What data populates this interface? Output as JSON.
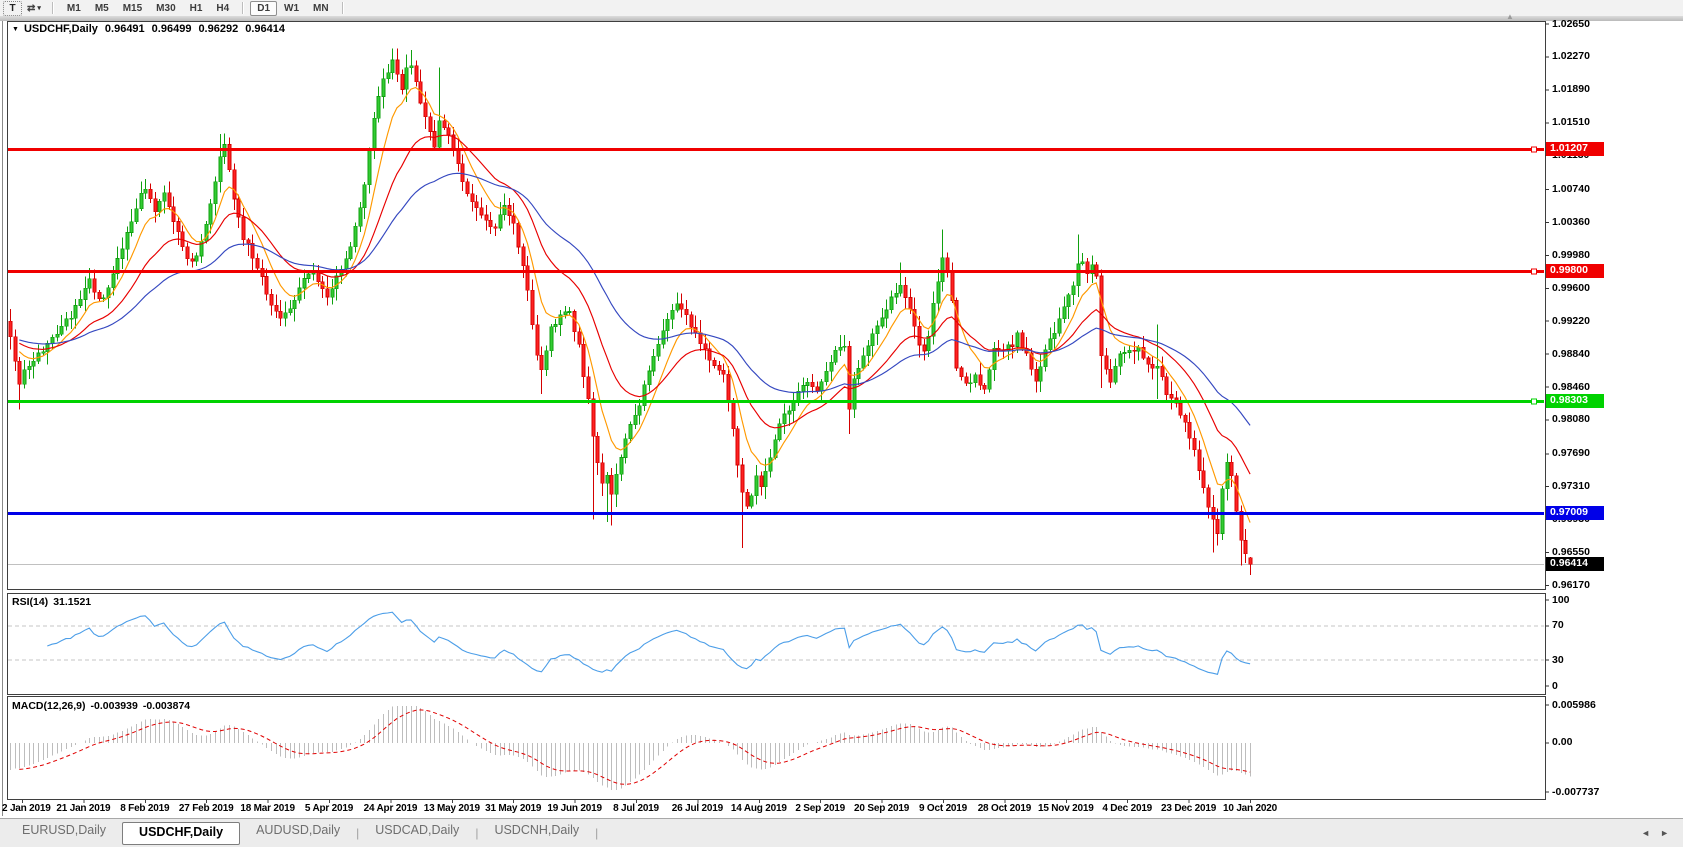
{
  "icons": {
    "symbol_dropdown": "▼",
    "caret_down": "▾",
    "arrows_tool": "⇄",
    "scroll_top": "▲",
    "tabs_scroll_left": "◄",
    "tabs_scroll_right": "►"
  },
  "toolbar": {
    "text_tool_label": "T",
    "timeframes": [
      "M1",
      "M5",
      "M15",
      "M30",
      "H1",
      "H4",
      "D1",
      "W1",
      "MN"
    ],
    "active_timeframe": "D1"
  },
  "header": {
    "symbol_label": "USDCHF,Daily",
    "open": "0.96491",
    "high": "0.96499",
    "low": "0.96292",
    "close": "0.96414"
  },
  "rsi_panel": {
    "title": "RSI(14)",
    "value": "31.1521",
    "axis": [
      "100",
      "70",
      "30",
      "0"
    ],
    "levels_dashed": [
      70,
      30
    ],
    "line_color": "#4c9ee8"
  },
  "macd_panel": {
    "title": "MACD(12,26,9)",
    "value_main": "-0.003939",
    "value_signal": "-0.003874",
    "axis": [
      "0.005986",
      "0.00",
      "-0.007737"
    ],
    "histogram_color": "#bdbdbd",
    "signal_color": "#e00000"
  },
  "tabs": {
    "separator": "|",
    "items": [
      "EURUSD,Daily",
      "USDCHF,Daily",
      "AUDUSD,Daily",
      "USDCAD,Daily",
      "USDCNH,Daily"
    ],
    "active": "USDCHF,Daily"
  },
  "chart_data": {
    "type": "candlestick",
    "symbol": "USDCHF",
    "timeframe": "Daily",
    "bar_count": 267,
    "current_ohlc": {
      "open": 0.96491,
      "high": 0.96499,
      "low": 0.96292,
      "close": 0.96414
    },
    "y_axis": {
      "min": 0.9617,
      "max": 1.0265,
      "tick_labels": [
        "1.02650",
        "1.02270",
        "1.01890",
        "1.01510",
        "1.01130",
        "1.00740",
        "1.00360",
        "0.99980",
        "0.99600",
        "0.99220",
        "0.98840",
        "0.98460",
        "0.98080",
        "0.97690",
        "0.97310",
        "0.96930",
        "0.96550",
        "0.96170"
      ]
    },
    "x_axis_dates": [
      "2 Jan 2019",
      "21 Jan 2019",
      "8 Feb 2019",
      "27 Feb 2019",
      "18 Mar 2019",
      "5 Apr 2019",
      "24 Apr 2019",
      "13 May 2019",
      "31 May 2019",
      "19 Jun 2019",
      "8 Jul 2019",
      "26 Jul 2019",
      "14 Aug 2019",
      "2 Sep 2019",
      "20 Sep 2019",
      "9 Oct 2019",
      "28 Oct 2019",
      "15 Nov 2019",
      "4 Dec 2019",
      "23 Dec 2019",
      "10 Jan 2020"
    ],
    "level_lines": [
      {
        "value": 1.01207,
        "label": "1.01207",
        "color": "#f00000",
        "width": 3,
        "handle": true
      },
      {
        "value": 0.998,
        "label": "0.99800",
        "color": "#f00000",
        "width": 3,
        "handle": true
      },
      {
        "value": 0.98303,
        "label": "0.98303",
        "color": "#00d200",
        "width": 3,
        "handle": true
      },
      {
        "value": 0.97009,
        "label": "0.97009",
        "color": "#0000e8",
        "width": 3,
        "handle": false
      }
    ],
    "bid": {
      "price": 0.96414,
      "label": "0.96414",
      "line_color": "#c0c0c0",
      "tag_bg": "#000000"
    },
    "moving_averages": [
      {
        "name": "fast",
        "period": 8,
        "color": "#ff9900"
      },
      {
        "name": "mid",
        "period": 21,
        "color": "#e80000"
      },
      {
        "name": "slow",
        "period": 45,
        "color": "#3548c0"
      }
    ],
    "candle_colors": {
      "up": "#33cc33",
      "up_border": "#0fa00f",
      "down": "#ff2222",
      "down_border": "#d40000"
    },
    "close_anchors": [
      [
        0,
        0.9905
      ],
      [
        1,
        0.9872
      ],
      [
        2,
        0.9846
      ],
      [
        3,
        0.9862
      ],
      [
        5,
        0.9874
      ],
      [
        8,
        0.9898
      ],
      [
        11,
        0.9914
      ],
      [
        13,
        0.9928
      ],
      [
        15,
        0.995
      ],
      [
        17,
        0.9968
      ],
      [
        19,
        0.9945
      ],
      [
        21,
        0.9958
      ],
      [
        24,
        1.0008
      ],
      [
        26,
        1.004
      ],
      [
        28,
        1.0066
      ],
      [
        29,
        1.0078
      ],
      [
        31,
        1.0052
      ],
      [
        33,
        1.0072
      ],
      [
        35,
        1.004
      ],
      [
        36,
        1.0022
      ],
      [
        38,
        0.9996
      ],
      [
        39,
        0.9988
      ],
      [
        41,
        1.0012
      ],
      [
        43,
        1.0058
      ],
      [
        45,
        1.0115
      ],
      [
        46,
        1.0122
      ],
      [
        47,
        1.0095
      ],
      [
        48,
        1.0062
      ],
      [
        50,
        1.002
      ],
      [
        53,
        0.9986
      ],
      [
        56,
        0.9942
      ],
      [
        58,
        0.9926
      ],
      [
        60,
        0.994
      ],
      [
        62,
        0.9958
      ],
      [
        64,
        0.998
      ],
      [
        66,
        0.997
      ],
      [
        68,
        0.9952
      ],
      [
        70,
        0.9974
      ],
      [
        72,
        0.9996
      ],
      [
        74,
        1.0028
      ],
      [
        76,
        1.0078
      ],
      [
        78,
        1.0158
      ],
      [
        80,
        1.0198
      ],
      [
        82,
        1.0225
      ],
      [
        83,
        1.0205
      ],
      [
        84,
        1.0192
      ],
      [
        85,
        1.0212
      ],
      [
        86,
        1.0218
      ],
      [
        87,
        1.0196
      ],
      [
        88,
        1.0175
      ],
      [
        90,
        1.014
      ],
      [
        91,
        1.0122
      ],
      [
        92,
        1.0152
      ],
      [
        94,
        1.0135
      ],
      [
        96,
        1.0102
      ],
      [
        98,
        1.0068
      ],
      [
        100,
        1.005
      ],
      [
        102,
        1.0038
      ],
      [
        104,
        1.003
      ],
      [
        106,
        1.0058
      ],
      [
        108,
        1.0036
      ],
      [
        110,
        0.9985
      ],
      [
        111,
        0.9958
      ],
      [
        112,
        0.9915
      ],
      [
        113,
        0.988
      ],
      [
        114,
        0.9862
      ],
      [
        116,
        0.9912
      ],
      [
        118,
        0.9928
      ],
      [
        120,
        0.993
      ],
      [
        122,
        0.9895
      ],
      [
        123,
        0.9855
      ],
      [
        124,
        0.9832
      ],
      [
        125,
        0.979
      ],
      [
        126,
        0.9758
      ],
      [
        127,
        0.9735
      ],
      [
        128,
        0.9748
      ],
      [
        129,
        0.9722
      ],
      [
        130,
        0.9742
      ],
      [
        131,
        0.9768
      ],
      [
        133,
        0.98
      ],
      [
        135,
        0.9828
      ],
      [
        137,
        0.9862
      ],
      [
        139,
        0.9895
      ],
      [
        141,
        0.9922
      ],
      [
        143,
        0.9945
      ],
      [
        145,
        0.9928
      ],
      [
        147,
        0.9905
      ],
      [
        149,
        0.9888
      ],
      [
        151,
        0.9868
      ],
      [
        153,
        0.9858
      ],
      [
        154,
        0.983
      ],
      [
        155,
        0.98
      ],
      [
        156,
        0.9758
      ],
      [
        157,
        0.9722
      ],
      [
        158,
        0.9708
      ],
      [
        159,
        0.9722
      ],
      [
        160,
        0.9745
      ],
      [
        161,
        0.9732
      ],
      [
        163,
        0.9768
      ],
      [
        165,
        0.98
      ],
      [
        167,
        0.9822
      ],
      [
        169,
        0.9838
      ],
      [
        171,
        0.9855
      ],
      [
        173,
        0.9842
      ],
      [
        175,
        0.9868
      ],
      [
        177,
        0.9886
      ],
      [
        179,
        0.9896
      ],
      [
        180,
        0.9822
      ],
      [
        181,
        0.9858
      ],
      [
        183,
        0.9882
      ],
      [
        185,
        0.9905
      ],
      [
        187,
        0.9925
      ],
      [
        189,
        0.9946
      ],
      [
        191,
        0.9962
      ],
      [
        193,
        0.9935
      ],
      [
        195,
        0.9898
      ],
      [
        196,
        0.9885
      ],
      [
        197,
        0.9902
      ],
      [
        198,
        0.994
      ],
      [
        199,
        0.9968
      ],
      [
        200,
        0.9992
      ],
      [
        201,
        0.998
      ],
      [
        202,
        0.9945
      ],
      [
        203,
        0.987
      ],
      [
        205,
        0.985
      ],
      [
        207,
        0.9858
      ],
      [
        209,
        0.984
      ],
      [
        211,
        0.9888
      ],
      [
        213,
        0.989
      ],
      [
        215,
        0.9895
      ],
      [
        216,
        0.9906
      ],
      [
        218,
        0.9882
      ],
      [
        220,
        0.985
      ],
      [
        222,
        0.9888
      ],
      [
        224,
        0.991
      ],
      [
        226,
        0.9938
      ],
      [
        228,
        0.9965
      ],
      [
        229,
        0.9985
      ],
      [
        230,
        0.9992
      ],
      [
        231,
        0.998
      ],
      [
        232,
        0.9988
      ],
      [
        233,
        0.9972
      ],
      [
        234,
        0.988
      ],
      [
        236,
        0.9848
      ],
      [
        238,
        0.9885
      ],
      [
        240,
        0.9888
      ],
      [
        242,
        0.989
      ],
      [
        244,
        0.9872
      ],
      [
        246,
        0.9868
      ],
      [
        248,
        0.984
      ],
      [
        250,
        0.9828
      ],
      [
        252,
        0.9802
      ],
      [
        254,
        0.977
      ],
      [
        256,
        0.9728
      ],
      [
        258,
        0.9692
      ],
      [
        259,
        0.9678
      ],
      [
        260,
        0.9728
      ],
      [
        261,
        0.9758
      ],
      [
        262,
        0.9742
      ],
      [
        263,
        0.97
      ],
      [
        264,
        0.9668
      ],
      [
        265,
        0.9652
      ],
      [
        266,
        0.96414
      ]
    ],
    "wick_overrides": {
      "2": {
        "l": 0.982
      },
      "29": {
        "h": 1.0086
      },
      "45": {
        "h": 1.0138
      },
      "82": {
        "h": 1.0237
      },
      "85": {
        "h": 1.023
      },
      "86": {
        "h": 1.0235
      },
      "92": {
        "h": 1.0215
      },
      "114": {
        "l": 0.9838
      },
      "125": {
        "l": 0.9693
      },
      "128": {
        "l": 0.969
      },
      "129": {
        "l": 0.9686
      },
      "143": {
        "h": 0.9955
      },
      "157": {
        "l": 0.966
      },
      "180": {
        "l": 0.9792
      },
      "191": {
        "h": 0.999
      },
      "200": {
        "h": 1.0028
      },
      "229": {
        "h": 1.0022
      },
      "234": {
        "l": 0.9845
      },
      "246": {
        "h": 0.9918,
        "l": 0.9832
      },
      "258": {
        "l": 0.9655
      },
      "264": {
        "l": 0.964
      },
      "266": {
        "o": 0.96491,
        "h": 0.96499,
        "l": 0.96292,
        "c": 0.96414
      }
    },
    "indicators": [
      {
        "name": "RSI",
        "period": 14,
        "current": 31.1521,
        "scale": [
          0,
          100
        ],
        "dashed_levels": [
          70,
          30
        ]
      },
      {
        "name": "MACD",
        "fast": 12,
        "slow": 26,
        "signal": 9,
        "current_macd": -0.003939,
        "current_signal": -0.003874,
        "scale_max": 0.005986,
        "scale_min": -0.007737
      }
    ]
  }
}
